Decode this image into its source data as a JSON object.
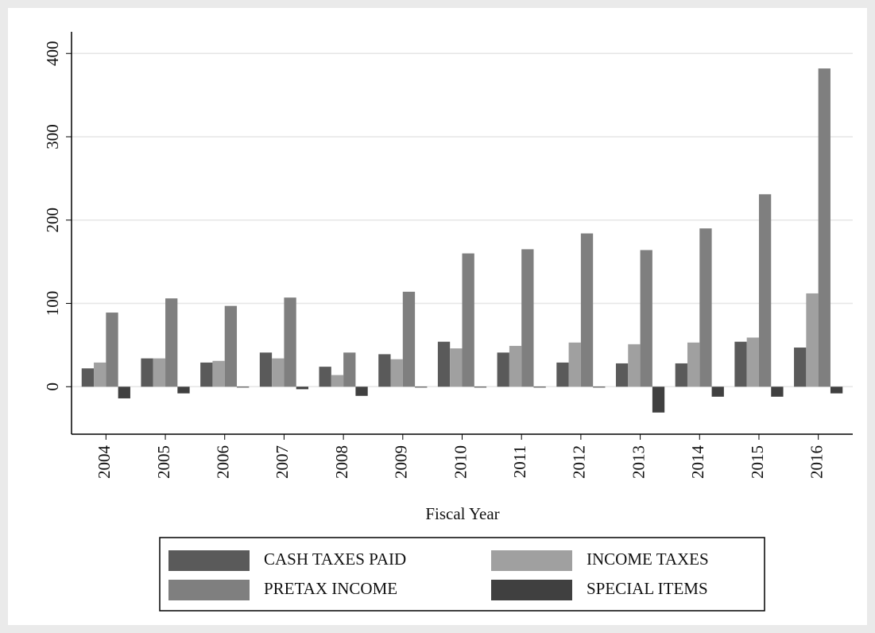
{
  "chart_data": {
    "type": "bar",
    "x_label": "Fiscal Year",
    "categories": [
      "2004",
      "2005",
      "2006",
      "2007",
      "2008",
      "2009",
      "2010",
      "2011",
      "2012",
      "2013",
      "2014",
      "2015",
      "2016"
    ],
    "series": [
      {
        "name": "CASH TAXES PAID",
        "color": "#5a5a5a",
        "values": [
          22,
          34,
          29,
          41,
          24,
          39,
          54,
          41,
          29,
          28,
          28,
          54,
          47
        ]
      },
      {
        "name": "INCOME TAXES",
        "color": "#a0a0a0",
        "values": [
          29,
          34,
          31,
          34,
          14,
          33,
          46,
          49,
          53,
          51,
          53,
          59,
          112
        ]
      },
      {
        "name": "PRETAX INCOME",
        "color": "#7f7f7f",
        "values": [
          89,
          106,
          97,
          107,
          41,
          114,
          160,
          165,
          184,
          164,
          190,
          231,
          382
        ]
      },
      {
        "name": "SPECIAL ITEMS",
        "color": "#404040",
        "values": [
          -14,
          -8,
          -1,
          -3,
          -11,
          -1,
          -1,
          -1,
          -1,
          -31,
          -12,
          -12,
          -8
        ]
      }
    ],
    "ylim": [
      -57,
      426
    ],
    "yticks": [
      0,
      100,
      200,
      300,
      400
    ],
    "grid": true,
    "legend": "bottom"
  }
}
